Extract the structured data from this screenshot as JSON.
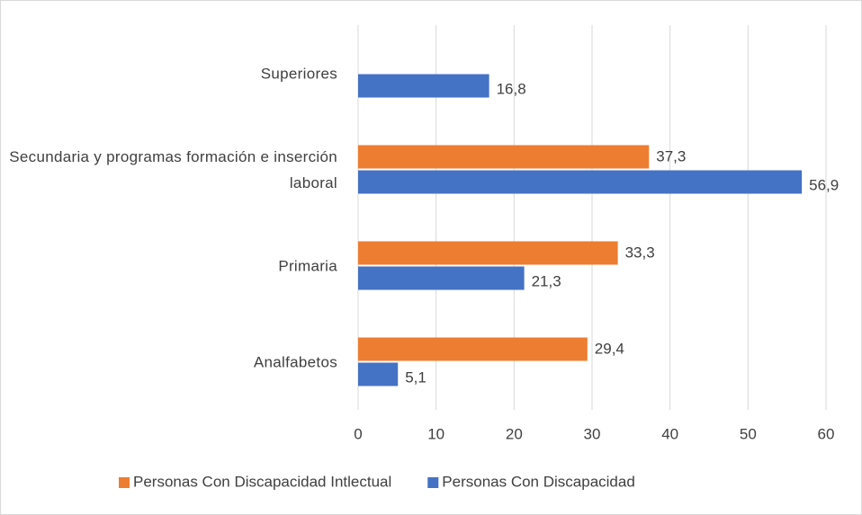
{
  "chart_data": {
    "type": "hbar",
    "categories": [
      "Superiores",
      "Secundaria y programas formación e inserción laboral",
      "Primaria",
      "Analfabetos"
    ],
    "series": [
      {
        "name": "Personas Con Discapacidad Intlectual",
        "color": "#ed7d31",
        "values": [
          null,
          37.3,
          33.3,
          29.4
        ],
        "value_labels": [
          null,
          "37,3",
          "33,3",
          "29,4"
        ]
      },
      {
        "name": "Personas Con Discapacidad",
        "color": "#4472c4",
        "values": [
          16.8,
          56.9,
          21.3,
          5.1
        ],
        "value_labels": [
          "16,8",
          "56,9",
          "21,3",
          "5,1"
        ]
      }
    ],
    "xlim": [
      0,
      60
    ],
    "xticks": [
      0,
      10,
      20,
      30,
      40,
      50,
      60
    ],
    "grid": true,
    "legend": "bottom"
  }
}
